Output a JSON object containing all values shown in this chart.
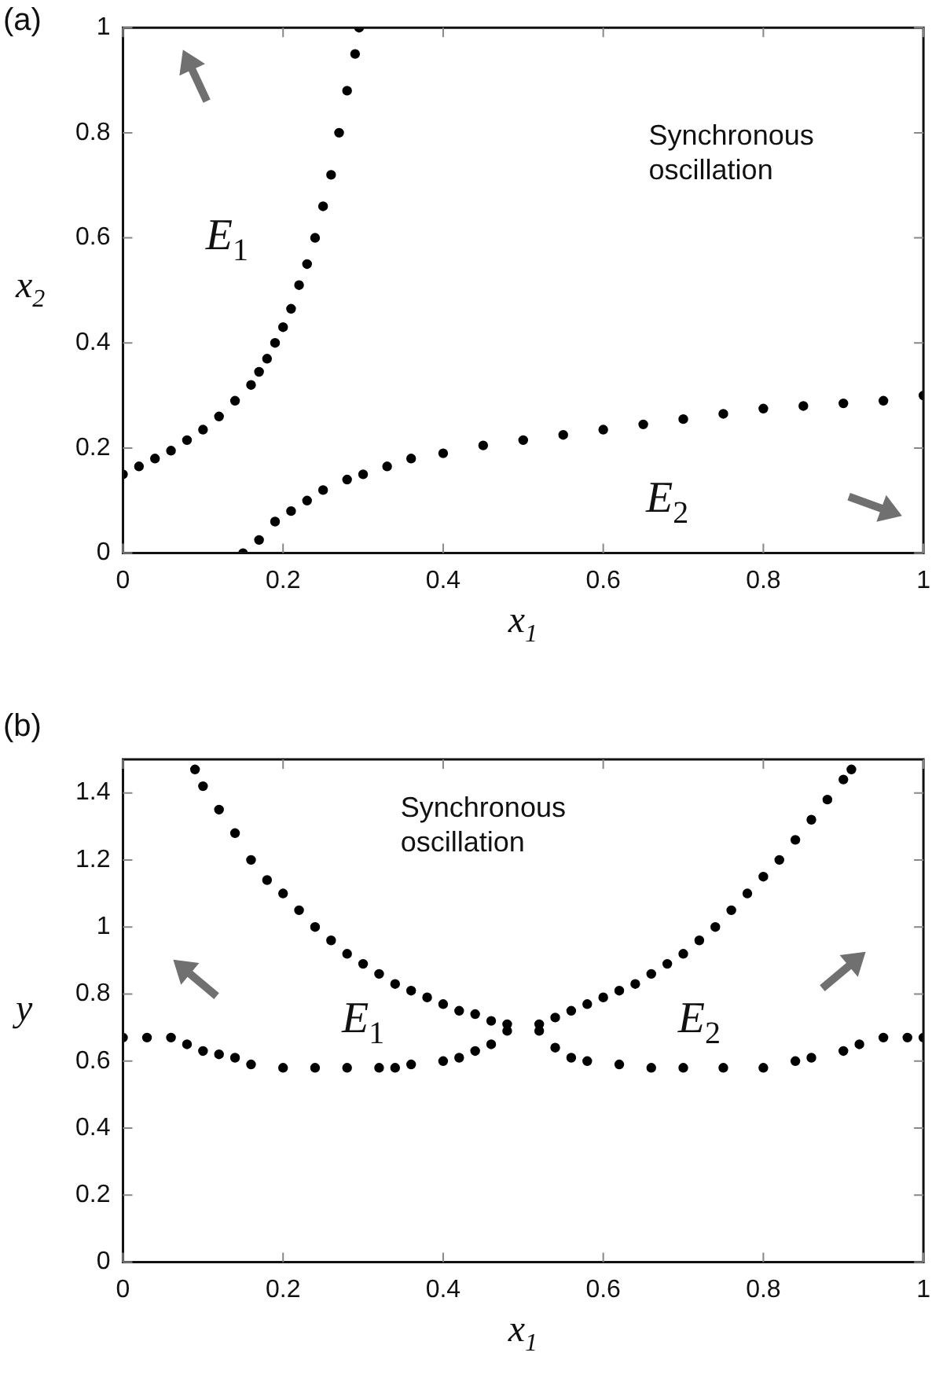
{
  "chart_data": [
    {
      "type": "scatter",
      "title": "(a)",
      "xlabel": "x$_{1}$",
      "ylabel": "x$_{2}$",
      "xlim": [
        0,
        1
      ],
      "ylim": [
        0,
        1
      ],
      "xticks": [
        0,
        0.2,
        0.4,
        0.6,
        0.8,
        1
      ],
      "yticks": [
        0,
        0.2,
        0.4,
        0.6,
        0.8,
        1
      ],
      "marker": "circle",
      "series": [
        {
          "color": "#000000",
          "x": [
            0,
            0.02,
            0.04,
            0.06,
            0.08,
            0.1,
            0.12,
            0.14,
            0.16,
            0.17,
            0.18,
            0.19,
            0.2,
            0.21,
            0.22,
            0.23,
            0.24,
            0.25,
            0.26,
            0.27,
            0.28,
            0.29,
            0.295
          ],
          "values": [
            0.15,
            0.165,
            0.18,
            0.195,
            0.215,
            0.235,
            0.26,
            0.29,
            0.32,
            0.345,
            0.37,
            0.4,
            0.43,
            0.465,
            0.51,
            0.55,
            0.6,
            0.66,
            0.72,
            0.8,
            0.88,
            0.95,
            1
          ]
        },
        {
          "color": "#000000",
          "x": [
            0.15,
            0.17,
            0.19,
            0.21,
            0.23,
            0.25,
            0.28,
            0.3,
            0.33,
            0.36,
            0.4,
            0.45,
            0.5,
            0.55,
            0.6,
            0.65,
            0.7,
            0.75,
            0.8,
            0.85,
            0.9,
            0.95,
            1
          ],
          "values": [
            0,
            0.025,
            0.06,
            0.08,
            0.1,
            0.12,
            0.14,
            0.15,
            0.165,
            0.18,
            0.19,
            0.205,
            0.215,
            0.225,
            0.235,
            0.245,
            0.255,
            0.265,
            0.275,
            0.28,
            0.285,
            0.29,
            0.3
          ]
        }
      ],
      "annotations": [
        "Synchronous oscillation",
        "E$_{1}$",
        "E$_{2}$"
      ]
    },
    {
      "type": "scatter",
      "title": "(b)",
      "xlabel": "x$_{1}$",
      "ylabel": "y",
      "xlim": [
        0,
        1
      ],
      "ylim": [
        0,
        1.5
      ],
      "xticks": [
        0,
        0.2,
        0.4,
        0.6,
        0.8,
        1
      ],
      "yticks": [
        0,
        0.2,
        0.4,
        0.6,
        0.8,
        1,
        1.2,
        1.4
      ],
      "marker": "circle",
      "series": [
        {
          "color": "#000000",
          "x": [
            0.09,
            0.1,
            0.12,
            0.14,
            0.16,
            0.18,
            0.2,
            0.22,
            0.24,
            0.26,
            0.28,
            0.3,
            0.32,
            0.34,
            0.36,
            0.38,
            0.4,
            0.42,
            0.44,
            0.46,
            0.48,
            0,
            0.03,
            0.06,
            0.08,
            0.1,
            0.12,
            0.14,
            0.16,
            0.2,
            0.24,
            0.28,
            0.32,
            0.34,
            0.36,
            0.4,
            0.42,
            0.44,
            0.46,
            0.48
          ],
          "values": [
            1.47,
            1.42,
            1.35,
            1.28,
            1.2,
            1.14,
            1.1,
            1.05,
            1,
            0.96,
            0.92,
            0.89,
            0.86,
            0.83,
            0.81,
            0.79,
            0.77,
            0.75,
            0.74,
            0.72,
            0.71,
            0.67,
            0.67,
            0.67,
            0.65,
            0.63,
            0.62,
            0.61,
            0.59,
            0.58,
            0.58,
            0.58,
            0.58,
            0.58,
            0.59,
            0.6,
            0.61,
            0.63,
            0.65,
            0.69
          ]
        },
        {
          "color": "#000000",
          "x": [
            0.52,
            0.54,
            0.56,
            0.58,
            0.6,
            0.62,
            0.64,
            0.66,
            0.68,
            0.7,
            0.72,
            0.74,
            0.76,
            0.78,
            0.8,
            0.82,
            0.84,
            0.86,
            0.88,
            0.9,
            0.91,
            0.52,
            0.54,
            0.56,
            0.58,
            0.62,
            0.66,
            0.7,
            0.75,
            0.8,
            0.84,
            0.86,
            0.9,
            0.92,
            0.95,
            0.98,
            1
          ],
          "values": [
            0.71,
            0.73,
            0.75,
            0.77,
            0.79,
            0.81,
            0.83,
            0.86,
            0.89,
            0.92,
            0.96,
            1,
            1.05,
            1.1,
            1.15,
            1.2,
            1.26,
            1.32,
            1.38,
            1.44,
            1.47,
            0.69,
            0.64,
            0.61,
            0.6,
            0.59,
            0.58,
            0.58,
            0.58,
            0.58,
            0.6,
            0.61,
            0.63,
            0.65,
            0.67,
            0.67,
            0.67
          ]
        }
      ],
      "annotations": [
        "Synchronous oscillation",
        "E$_{1}$",
        "E$_{2}$"
      ]
    }
  ]
}
